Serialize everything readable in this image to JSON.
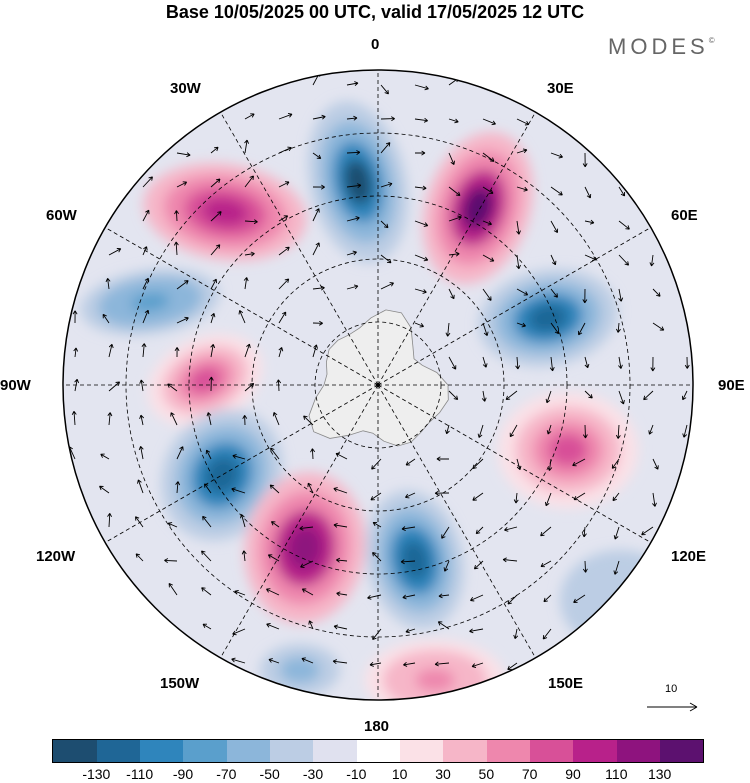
{
  "header": {
    "title": "Base 10/05/2025 00 UTC, valid 17/05/2025 12 UTC",
    "brand": "MODES",
    "brand_mark": "©"
  },
  "map": {
    "projection": "south-polar-stereographic",
    "longitude_labels": {
      "top": "0",
      "bottom": "180",
      "left": "90W",
      "right": "90E",
      "upper_left": "30W",
      "upper_right": "30E",
      "mid_upper_left": "60W",
      "mid_upper_right": "60E",
      "lower_left": "120W",
      "lower_right": "120E",
      "bottom_left": "150W",
      "bottom_right": "150E"
    },
    "colors": {
      "land": "#eeeeee",
      "background": "#ffffff"
    },
    "reference_vector": {
      "label": "10"
    }
  },
  "colorbar": {
    "colors": [
      "#1d4d70",
      "#1f6696",
      "#2f85bc",
      "#5a9fcc",
      "#8cb6da",
      "#bccde4",
      "#e0e1ef",
      "#ffffff",
      "#fbe1e7",
      "#f6b6c8",
      "#ee87ad",
      "#d85098",
      "#b8218a",
      "#8e137e",
      "#5c116f"
    ],
    "tick_labels": [
      "-130",
      "-110",
      "-90",
      "-70",
      "-50",
      "-30",
      "-10",
      "10",
      "30",
      "50",
      "70",
      "90",
      "110",
      "130"
    ]
  }
}
